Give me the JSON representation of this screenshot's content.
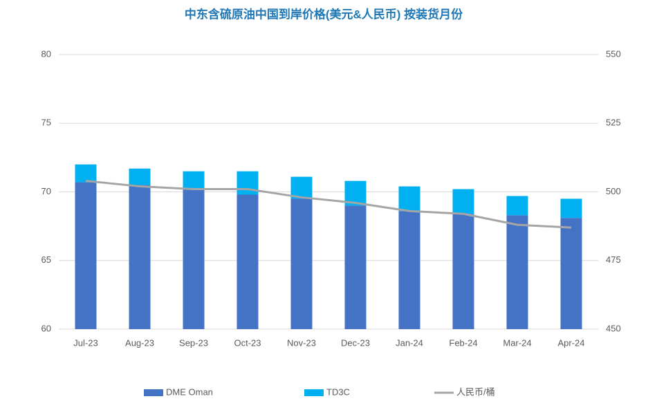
{
  "chart_data": {
    "type": "stacked-bar-line",
    "title": "中东含硫原油中国到岸价格(美元&人民币) 按装货月份",
    "categories": [
      "Jul-23",
      "Aug-23",
      "Sep-23",
      "Oct-23",
      "Nov-23",
      "Dec-23",
      "Jan-24",
      "Feb-24",
      "Mar-24",
      "Apr-24"
    ],
    "series": [
      {
        "name": "DME Oman",
        "color": "#4472c4",
        "values": [
          70.7,
          70.5,
          70.2,
          69.8,
          69.5,
          69.0,
          68.6,
          68.4,
          68.3,
          68.1
        ]
      },
      {
        "name": "TD3C",
        "color": "#00b0f0",
        "values": [
          1.3,
          1.2,
          1.3,
          1.7,
          1.6,
          1.8,
          1.8,
          1.8,
          1.4,
          1.4
        ]
      },
      {
        "name": "人民币/桶",
        "color": "#a5a5a5",
        "axis": "y2",
        "values": [
          504,
          502,
          501,
          501,
          498,
          496,
          493,
          492,
          488,
          487
        ]
      }
    ],
    "ylim": [
      60,
      80
    ],
    "yticks": [
      60,
      65,
      70,
      75,
      80
    ],
    "y2lim": [
      450,
      550
    ],
    "y2ticks": [
      450,
      475,
      500,
      525,
      550
    ],
    "grid": true,
    "legend": "bottom"
  }
}
